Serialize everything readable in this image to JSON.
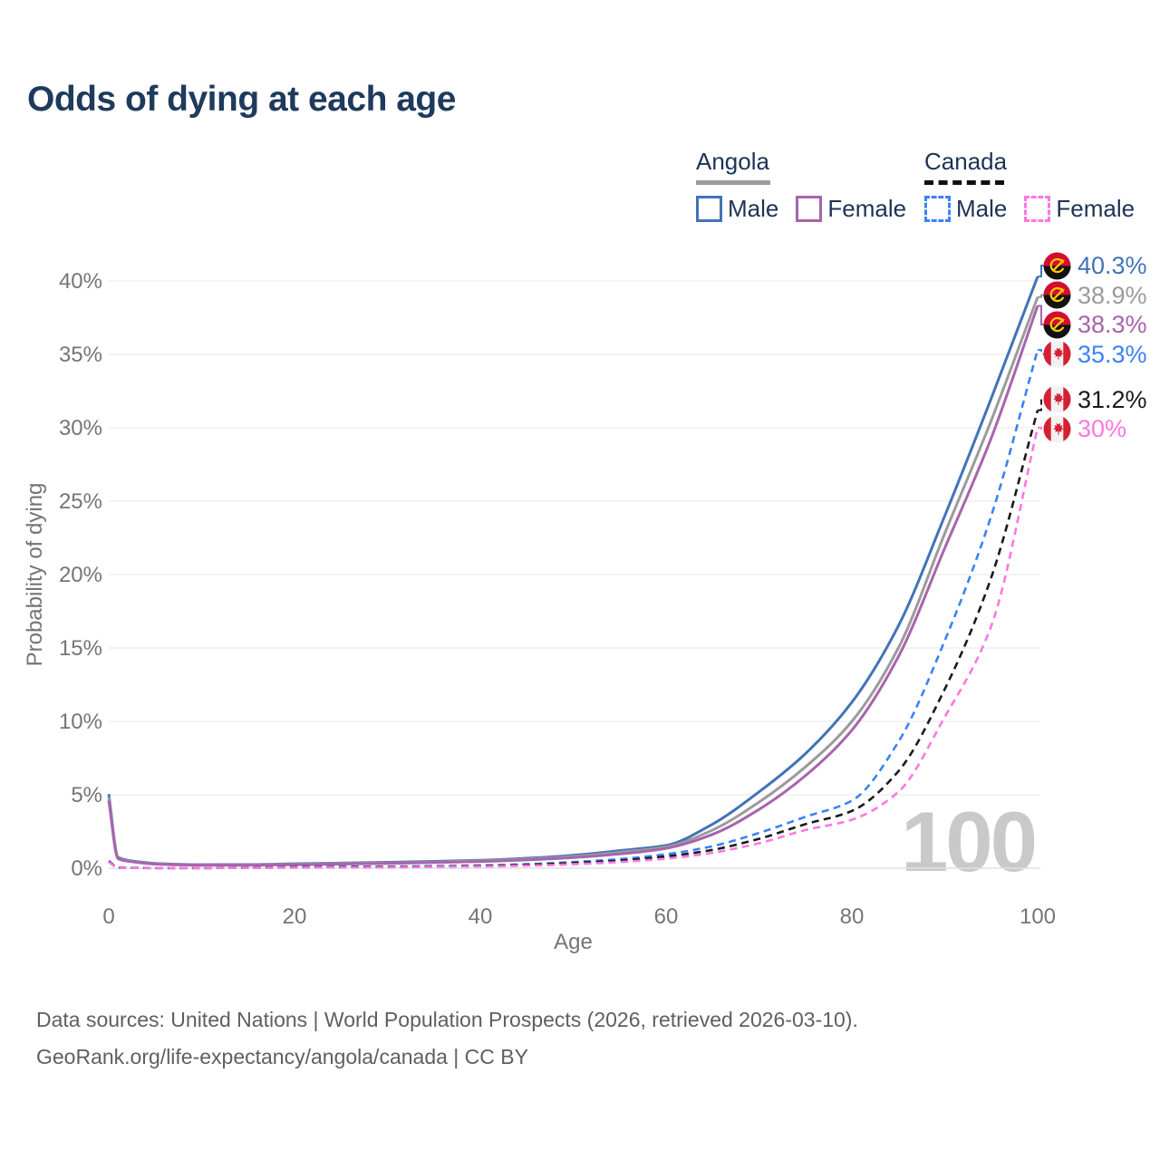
{
  "title": "Odds of dying at each age",
  "legend": {
    "position": "top-right",
    "groups": [
      {
        "label": "Angola",
        "line_style": "solid",
        "underline_color": "#9b9b9b",
        "items": [
          {
            "label": "Male",
            "color": "#4273b8"
          },
          {
            "label": "Female",
            "color": "#a864ad"
          }
        ]
      },
      {
        "label": "Canada",
        "line_style": "dashed",
        "underline_color": "#111111",
        "items": [
          {
            "label": "Male",
            "color": "#3b82f6"
          },
          {
            "label": "Female",
            "color": "#ff77e2"
          }
        ]
      }
    ]
  },
  "chart_data": {
    "type": "line",
    "title": "Odds of dying at each age",
    "xlabel": "Age",
    "ylabel": "Probability of dying",
    "xlim": [
      0,
      100
    ],
    "ylim_pct": [
      0,
      40
    ],
    "xticks": [
      0,
      20,
      40,
      60,
      80,
      100
    ],
    "yticks_pct": [
      0,
      5,
      10,
      15,
      20,
      25,
      30,
      35,
      40
    ],
    "grid": true,
    "watermark": "100",
    "x": [
      0,
      1,
      2,
      3,
      5,
      10,
      15,
      20,
      25,
      30,
      35,
      40,
      45,
      50,
      55,
      60,
      65,
      70,
      75,
      80,
      85,
      90,
      95,
      100
    ],
    "series": [
      {
        "name": "Angola male",
        "country": "angola",
        "sex": "male",
        "color": "#4273b8",
        "dash": "solid",
        "end_label": "40.3%",
        "end_value_pct": 40.3,
        "values_pct": [
          5.05,
          0.75,
          0.55,
          0.45,
          0.33,
          0.24,
          0.25,
          0.3,
          0.35,
          0.4,
          0.46,
          0.54,
          0.68,
          0.88,
          1.2,
          1.55,
          3.0,
          5.2,
          7.8,
          11.3,
          16.5,
          24.0,
          32.0,
          40.3
        ]
      },
      {
        "name": "Angola both sexes",
        "country": "angola",
        "sex": "both",
        "color": "#9b9b9b",
        "dash": "solid",
        "end_label": "38.9%",
        "end_value_pct": 38.9,
        "values_pct": [
          4.85,
          0.7,
          0.52,
          0.42,
          0.3,
          0.22,
          0.22,
          0.27,
          0.32,
          0.36,
          0.42,
          0.5,
          0.62,
          0.8,
          1.08,
          1.45,
          2.6,
          4.5,
          6.9,
          10.0,
          15.0,
          22.8,
          30.5,
          38.9
        ]
      },
      {
        "name": "Angola female",
        "country": "angola",
        "sex": "female",
        "color": "#a864ad",
        "dash": "solid",
        "end_label": "38.3%",
        "end_value_pct": 38.3,
        "values_pct": [
          4.6,
          0.65,
          0.48,
          0.4,
          0.28,
          0.2,
          0.2,
          0.24,
          0.28,
          0.32,
          0.38,
          0.45,
          0.56,
          0.72,
          0.97,
          1.35,
          2.3,
          4.0,
          6.3,
          9.4,
          14.4,
          21.8,
          29.3,
          38.3
        ]
      },
      {
        "name": "Canada male",
        "country": "canada",
        "sex": "male",
        "color": "#3b82f6",
        "dash": "dashed",
        "end_label": "35.3%",
        "end_value_pct": 35.3,
        "values_pct": [
          0.5,
          0.04,
          0.02,
          0.02,
          0.01,
          0.01,
          0.04,
          0.08,
          0.1,
          0.11,
          0.14,
          0.18,
          0.27,
          0.42,
          0.62,
          0.95,
          1.5,
          2.4,
          3.5,
          4.6,
          8.6,
          15.5,
          24.0,
          35.3
        ]
      },
      {
        "name": "Canada both sexes",
        "country": "canada",
        "sex": "both",
        "color": "#1a1a1a",
        "dash": "dashed",
        "end_label": "31.2%",
        "end_value_pct": 31.2,
        "values_pct": [
          0.45,
          0.04,
          0.02,
          0.02,
          0.01,
          0.01,
          0.03,
          0.06,
          0.08,
          0.09,
          0.12,
          0.16,
          0.23,
          0.35,
          0.52,
          0.8,
          1.25,
          2.0,
          3.0,
          3.9,
          6.6,
          12.2,
          19.8,
          31.2
        ]
      },
      {
        "name": "Canada female",
        "country": "canada",
        "sex": "female",
        "color": "#ff77e2",
        "dash": "dashed",
        "end_label": "30%",
        "end_value_pct": 30.0,
        "values_pct": [
          0.42,
          0.03,
          0.02,
          0.02,
          0.01,
          0.01,
          0.02,
          0.04,
          0.05,
          0.06,
          0.09,
          0.12,
          0.17,
          0.27,
          0.42,
          0.65,
          1.05,
          1.7,
          2.6,
          3.3,
          5.2,
          10.3,
          16.5,
          30.0
        ]
      }
    ]
  },
  "footer": {
    "line1": "Data sources: United Nations | World Population Prospects (2026, retrieved 2026-03-10).",
    "line2": "GeoRank.org/life-expectancy/angola/canada | CC BY"
  }
}
